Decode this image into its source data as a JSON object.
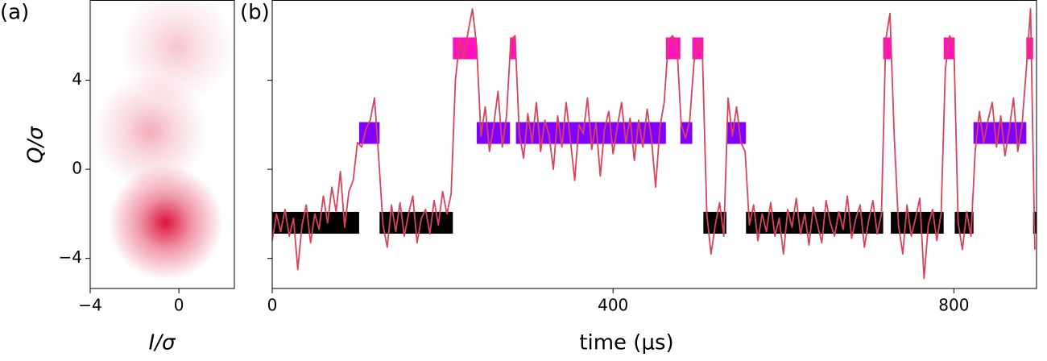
{
  "chart_data": [
    {
      "type": "density",
      "label": "(a)",
      "xlabel": "I/σ",
      "ylabel": "Q/σ",
      "x": [
        -0.1,
        -1.3,
        -0.6
      ],
      "values": [
        5.5,
        1.7,
        -2.4
      ],
      "weights": [
        0.25,
        0.35,
        1
      ],
      "color": "#dc143c",
      "xlim": [
        -4,
        2.5
      ],
      "ylim": [
        -5.35,
        7.6
      ],
      "xticks": [
        {
          "value": -4,
          "label": "−4"
        },
        0
      ],
      "yticks": [
        {
          "value": -4,
          "label": "−4"
        },
        0,
        4
      ]
    },
    {
      "type": "line",
      "label": "(b)",
      "xlabel": "time (μs)",
      "color": "#d9435a",
      "xlim": [
        0,
        897
      ],
      "xticks": [
        0,
        400,
        800
      ],
      "x": [
        0,
        5,
        10,
        15,
        20,
        25,
        30,
        35,
        40,
        45,
        50,
        55,
        60,
        65,
        70,
        75,
        80,
        85,
        90,
        95,
        100,
        105,
        110,
        115,
        120,
        125,
        130,
        135,
        140,
        145,
        150,
        155,
        160,
        165,
        170,
        175,
        180,
        185,
        190,
        195,
        200,
        205,
        210,
        215,
        220,
        225,
        230,
        235,
        240,
        245,
        250,
        255,
        260,
        265,
        270,
        275,
        280,
        285,
        290,
        295,
        300,
        305,
        310,
        315,
        320,
        325,
        330,
        335,
        340,
        345,
        350,
        355,
        360,
        365,
        370,
        375,
        380,
        385,
        390,
        395,
        400,
        405,
        410,
        415,
        420,
        425,
        430,
        435,
        440,
        445,
        450,
        455,
        460,
        465,
        470,
        475,
        480,
        485,
        490,
        495,
        500,
        505,
        510,
        515,
        520,
        525,
        530,
        535,
        540,
        545,
        550,
        555,
        560,
        565,
        570,
        575,
        580,
        585,
        590,
        595,
        600,
        605,
        610,
        615,
        620,
        625,
        630,
        635,
        640,
        645,
        650,
        655,
        660,
        665,
        670,
        675,
        680,
        685,
        690,
        695,
        700,
        705,
        710,
        715,
        720,
        725,
        730,
        735,
        740,
        745,
        750,
        755,
        760,
        765,
        770,
        775,
        780,
        785,
        790,
        795,
        800,
        805,
        810,
        815,
        820,
        825,
        830,
        835,
        840,
        845,
        850,
        855,
        860,
        865,
        870,
        875,
        880,
        885,
        890,
        895
      ],
      "values": [
        -3.2,
        -2.0,
        -2.8,
        -1.8,
        -3.0,
        -2.2,
        -4.5,
        -2.5,
        -1.6,
        -3.3,
        -2.0,
        -2.7,
        -1.2,
        -2.4,
        -0.8,
        -1.9,
        -0.1,
        -2.6,
        -1.0,
        -0.5,
        1.2,
        1.0,
        1.8,
        2.2,
        3.2,
        0.5,
        -2.5,
        -3.5,
        -1.6,
        -2.8,
        -1.5,
        -3.0,
        -2.0,
        -1.2,
        -3.3,
        -2.2,
        -1.8,
        -2.9,
        -1.4,
        -2.5,
        -1.0,
        -2.0,
        -1.1,
        4.0,
        5.8,
        5.0,
        6.2,
        7.2,
        5.5,
        1.5,
        2.8,
        0.8,
        2.0,
        3.5,
        1.0,
        2.4,
        5.8,
        6.0,
        1.6,
        0.5,
        2.5,
        1.2,
        3.0,
        0.8,
        2.2,
        1.5,
        0.0,
        2.4,
        1.0,
        3.0,
        1.3,
        -0.5,
        2.0,
        1.6,
        3.2,
        0.9,
        2.1,
        -0.3,
        1.8,
        2.6,
        0.7,
        1.9,
        3.0,
        1.2,
        2.3,
        0.4,
        2.2,
        1.0,
        2.7,
        1.4,
        -0.8,
        1.9,
        3.0,
        5.8,
        6.0,
        5.5,
        2.0,
        1.4,
        2.2,
        4.8,
        5.8,
        5.0,
        -2.0,
        -3.8,
        -2.5,
        -1.5,
        -3.0,
        3.2,
        1.5,
        2.8,
        1.2,
        0.8,
        -2.5,
        -1.6,
        -3.2,
        -2.0,
        -2.8,
        -1.5,
        -3.0,
        -2.2,
        -3.8,
        -1.8,
        -2.6,
        -1.3,
        -2.9,
        -2.0,
        -3.4,
        -1.7,
        -2.5,
        -3.3,
        -1.4,
        -2.4,
        -3.0,
        -1.9,
        -2.7,
        -1.2,
        -3.1,
        -2.2,
        -1.6,
        -3.5,
        -2.3,
        -1.4,
        -2.9,
        -2.0,
        5.8,
        7.0,
        1.5,
        -2.5,
        -3.8,
        -1.6,
        -3.0,
        -2.2,
        -1.3,
        -4.9,
        -2.5,
        -1.8,
        -3.2,
        -2.0,
        4.5,
        6.0,
        5.6,
        -2.4,
        -3.6,
        -1.9,
        -3.0,
        0.8,
        2.6,
        1.2,
        2.2,
        3.0,
        1.0,
        2.4,
        0.6,
        1.8,
        3.2,
        0.8,
        2.0,
        4.5,
        7.2,
        -3.6
      ],
      "states": [
        {
          "color": "#000000",
          "level": -2.4,
          "starts": [
            0,
            126,
            506,
            556,
            726,
            801,
            893
          ],
          "ends": [
            102,
            212,
            533,
            717,
            788,
            823,
            897
          ]
        },
        {
          "color": "#8000ff",
          "level": 1.63,
          "starts": [
            102,
            240,
            286,
            479,
            533,
            823
          ],
          "ends": [
            126,
            279,
            462,
            493,
            556,
            885
          ]
        },
        {
          "color": "#ff10c0",
          "level": 5.43,
          "starts": [
            212,
            279,
            462,
            493,
            717,
            788,
            885
          ],
          "ends": [
            240,
            286,
            479,
            506,
            726,
            801,
            893
          ]
        }
      ]
    }
  ]
}
